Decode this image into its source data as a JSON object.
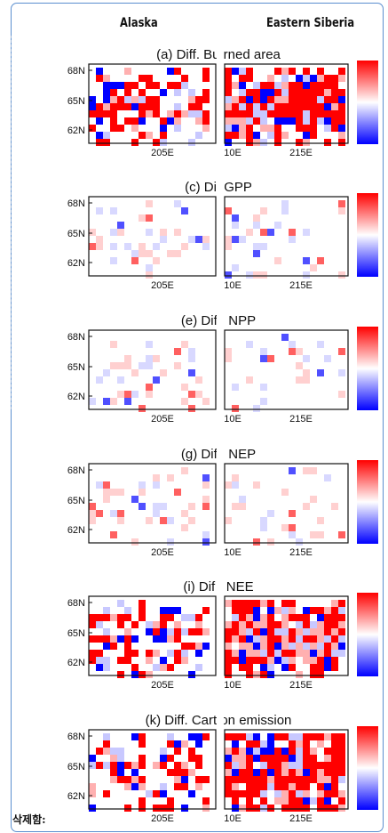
{
  "headers": {
    "left": "Alaska",
    "right": "Eastern Siberia"
  },
  "comment_label": "삭제함:",
  "colors": {
    "frame": "#5b8fcf",
    "red": "#ff0000",
    "blue": "#0000ff"
  },
  "chart_data": [
    {
      "type": "heatmap",
      "title": "(a) Diff. Bu rned area",
      "yticks": [
        "68N",
        "65N",
        "62N"
      ],
      "xticks_left": [
        "205E"
      ],
      "xticks_right": [
        "10E",
        "215E"
      ],
      "intensity": "strong"
    },
    {
      "type": "heatmap",
      "title": "(c) Dif  GPP",
      "yticks": [
        "68N",
        "65N",
        "62N"
      ],
      "xticks_left": [
        "205E"
      ],
      "xticks_right": [
        "10E",
        "215E"
      ],
      "intensity": "light"
    },
    {
      "type": "heatmap",
      "title": "(e) Dif . NPP",
      "yticks": [
        "68N",
        "65N",
        "62N"
      ],
      "xticks_left": [
        "205E"
      ],
      "xticks_right": [
        "10E",
        "215E"
      ],
      "intensity": "light"
    },
    {
      "type": "heatmap",
      "title": "(g) Dif . NEP",
      "yticks": [
        "68N",
        "65N",
        "62N"
      ],
      "xticks_left": [
        "205E"
      ],
      "xticks_right": [
        "10E",
        "215E"
      ],
      "intensity": "light"
    },
    {
      "type": "heatmap",
      "title": "(i) Dif . NEE",
      "yticks": [
        "68N",
        "65N",
        "62N"
      ],
      "xticks_left": [
        "205E"
      ],
      "xticks_right": [
        "10E",
        "215E"
      ],
      "intensity": "strong"
    },
    {
      "type": "heatmap",
      "title": "(k) Diff. Cart on emission",
      "yticks": [
        "68N",
        "65N",
        "62N"
      ],
      "xticks_left": [
        "205E"
      ],
      "xticks_right": [
        "10E",
        "215E"
      ],
      "intensity": "strong"
    }
  ]
}
